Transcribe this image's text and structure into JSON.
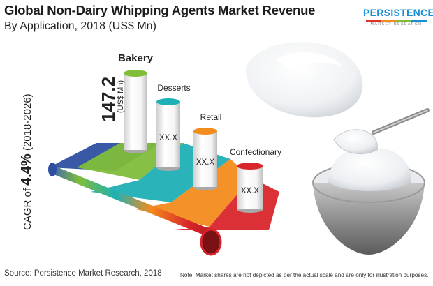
{
  "header": {
    "title": "Global Non-Dairy Whipping Agents Market Revenue",
    "subtitle": "By Application, 2018 (US$ Mn)"
  },
  "logo": {
    "name": "PERSISTENCE",
    "tagline": "MARKET RESEARCH",
    "colors": [
      "#e2312b",
      "#f38b1d",
      "#7fbd3a",
      "#1a8fd6"
    ]
  },
  "cagr": {
    "prefix": "CAGR of ",
    "value": "4.4%",
    "period": " (2018-2026)"
  },
  "chart_data": {
    "type": "bar",
    "categories": [
      "Bakery",
      "Desserts",
      "Retail",
      "Confectionary"
    ],
    "value_labels": [
      "147.2",
      "XX.X",
      "XX.X",
      "XX.X"
    ],
    "values": [
      147.2,
      null,
      null,
      null
    ],
    "unit_label": "(US$ Mn)",
    "colors": [
      "#7fbd3a",
      "#1fb0b5",
      "#f38b1d",
      "#d8252b"
    ],
    "ribbon_colors": [
      "#2e4fa0",
      "#7fbd3a",
      "#1fb0b5",
      "#f38b1d",
      "#d8252b"
    ]
  },
  "footer": {
    "source": "Source: Persistence Market Research, 2018",
    "note": "Note: Market shares are not depicted as per the actual scale and are only for illustration purposes."
  }
}
